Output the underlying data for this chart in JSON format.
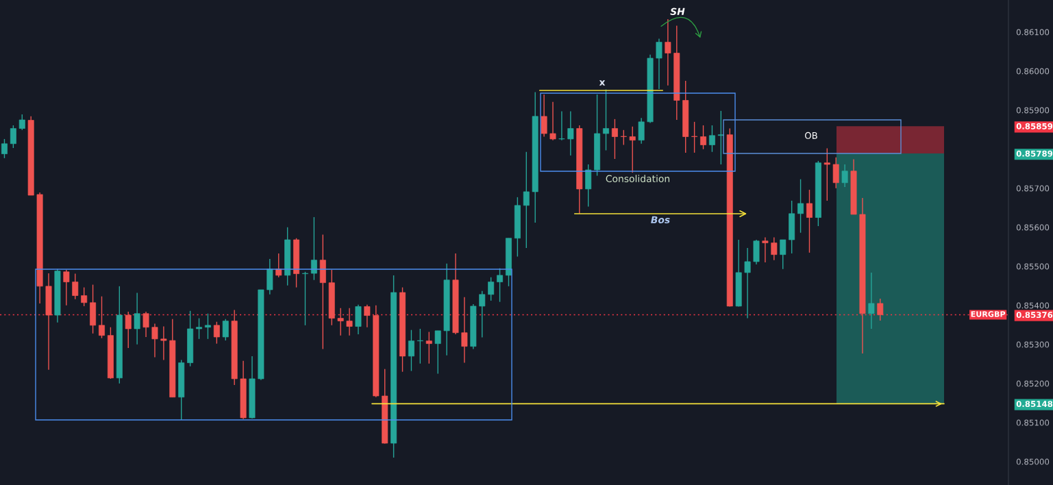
{
  "chart_data": {
    "type": "candlestick",
    "categories": [
      null,
      null,
      null,
      null,
      null,
      null,
      null,
      null,
      null,
      null,
      null,
      null,
      null,
      null,
      null,
      null,
      null,
      null,
      null,
      null,
      null,
      null,
      null,
      null,
      null,
      null,
      null,
      null,
      null,
      null,
      null,
      null,
      null,
      null,
      null,
      null,
      null,
      null,
      null,
      null,
      null,
      null,
      null,
      null,
      null,
      null,
      null,
      null,
      null,
      null,
      null,
      null,
      null,
      null,
      null,
      null,
      null,
      null,
      null,
      null,
      null,
      null,
      null,
      null,
      null,
      null,
      null,
      null,
      null,
      null,
      null,
      null,
      null,
      null,
      null,
      null,
      null,
      null,
      null,
      null,
      null,
      null,
      null,
      null,
      null,
      null,
      null,
      null,
      null,
      null,
      null,
      null,
      null,
      null,
      null,
      null,
      null,
      null,
      null,
      null,
      null,
      null,
      null,
      null,
      null,
      null,
      null,
      null,
      null,
      null,
      null,
      null,
      null,
      null
    ],
    "ohlc": [
      [
        0.85788,
        0.85826,
        0.85777,
        0.85814
      ],
      [
        0.85814,
        0.85861,
        0.85803,
        0.85853
      ],
      [
        0.85853,
        0.85889,
        0.85849,
        0.85875
      ],
      [
        0.85874,
        0.85884,
        0.85682,
        0.85682
      ],
      [
        0.85684,
        0.85689,
        0.85405,
        0.85449
      ],
      [
        0.85449,
        0.85482,
        0.85235,
        0.85375
      ],
      [
        0.85375,
        0.85493,
        0.85356,
        0.85488
      ],
      [
        0.85486,
        0.85491,
        0.854,
        0.8546
      ],
      [
        0.8546,
        0.85481,
        0.85416,
        0.85425
      ],
      [
        0.85425,
        0.85446,
        0.85398,
        0.85407
      ],
      [
        0.85407,
        0.85453,
        0.85328,
        0.85349
      ],
      [
        0.85349,
        0.85423,
        0.85316,
        0.85323
      ],
      [
        0.85323,
        0.85344,
        0.85212,
        0.85214
      ],
      [
        0.85214,
        0.85449,
        0.852,
        0.85375
      ],
      [
        0.85375,
        0.85384,
        0.85291,
        0.8534
      ],
      [
        0.8534,
        0.85432,
        0.853,
        0.85379
      ],
      [
        0.85379,
        0.85384,
        0.85319,
        0.85344
      ],
      [
        0.85344,
        0.85353,
        0.85267,
        0.85314
      ],
      [
        0.85314,
        0.85346,
        0.8526,
        0.8531
      ],
      [
        0.8531,
        0.85365,
        0.85165,
        0.85165
      ],
      [
        0.85165,
        0.8526,
        0.85107,
        0.85253
      ],
      [
        0.85253,
        0.85386,
        0.85244,
        0.8534
      ],
      [
        0.8534,
        0.85367,
        0.85314,
        0.85344
      ],
      [
        0.85344,
        0.85379,
        0.85314,
        0.85349
      ],
      [
        0.85349,
        0.85358,
        0.85302,
        0.85319
      ],
      [
        0.85319,
        0.85365,
        0.8531,
        0.8536
      ],
      [
        0.8536,
        0.85388,
        0.85196,
        0.85212
      ],
      [
        0.85212,
        0.85258,
        0.85109,
        0.85112
      ],
      [
        0.85112,
        0.8527,
        0.8511,
        0.85212
      ],
      [
        0.85212,
        0.8544,
        0.85209,
        0.8544
      ],
      [
        0.8544,
        0.85519,
        0.85428,
        0.85493
      ],
      [
        0.85493,
        0.85533,
        0.85472,
        0.85477
      ],
      [
        0.85477,
        0.856,
        0.85451,
        0.85568
      ],
      [
        0.85568,
        0.85572,
        0.85446,
        0.85481
      ],
      [
        0.85481,
        0.85486,
        0.85349,
        0.85482
      ],
      [
        0.85482,
        0.85626,
        0.85465,
        0.85516
      ],
      [
        0.85516,
        0.85581,
        0.85288,
        0.85458
      ],
      [
        0.85458,
        0.85491,
        0.85349,
        0.85367
      ],
      [
        0.85367,
        0.85393,
        0.85323,
        0.8536
      ],
      [
        0.8536,
        0.85393,
        0.85323,
        0.85346
      ],
      [
        0.85346,
        0.85402,
        0.85326,
        0.85397
      ],
      [
        0.85397,
        0.85402,
        0.85344,
        0.85374
      ],
      [
        0.85374,
        0.854,
        0.85165,
        0.85168
      ],
      [
        0.85168,
        0.85237,
        0.85046,
        0.85047
      ],
      [
        0.85047,
        0.85477,
        0.8501,
        0.85433
      ],
      [
        0.85433,
        0.85446,
        0.8523,
        0.8527
      ],
      [
        0.8527,
        0.85337,
        0.85232,
        0.85309
      ],
      [
        0.85309,
        0.8534,
        0.85251,
        0.85309
      ],
      [
        0.85309,
        0.85332,
        0.85251,
        0.85302
      ],
      [
        0.85302,
        0.85335,
        0.85225,
        0.85335
      ],
      [
        0.85335,
        0.85507,
        0.85272,
        0.85465
      ],
      [
        0.85465,
        0.85533,
        0.85326,
        0.8533
      ],
      [
        0.8533,
        0.85421,
        0.85253,
        0.85295
      ],
      [
        0.85295,
        0.85403,
        0.85288,
        0.85398
      ],
      [
        0.85398,
        0.85437,
        0.85318,
        0.85428
      ],
      [
        0.85428,
        0.85472,
        0.85412,
        0.8546
      ],
      [
        0.8546,
        0.85495,
        0.85409,
        0.85477
      ],
      [
        0.85477,
        0.85572,
        0.85449,
        0.85572
      ],
      [
        0.85572,
        0.85677,
        0.85525,
        0.85656
      ],
      [
        0.85656,
        0.85793,
        0.85547,
        0.85691
      ],
      [
        0.85691,
        0.85946,
        0.85612,
        0.85884
      ],
      [
        0.85884,
        0.8594,
        0.85832,
        0.8584
      ],
      [
        0.8584,
        0.85921,
        0.85823,
        0.85826
      ],
      [
        0.85826,
        0.85897,
        0.85823,
        0.85826
      ],
      [
        0.85826,
        0.85897,
        0.85784,
        0.85853
      ],
      [
        0.85853,
        0.85861,
        0.85635,
        0.85698
      ],
      [
        0.85698,
        0.85761,
        0.85653,
        0.85747
      ],
      [
        0.85747,
        0.8594,
        0.85732,
        0.8584
      ],
      [
        0.8584,
        0.85953,
        0.85797,
        0.85853
      ],
      [
        0.85853,
        0.85877,
        0.85775,
        0.85832
      ],
      [
        0.85832,
        0.85849,
        0.85811,
        0.85832
      ],
      [
        0.85832,
        0.85858,
        0.8574,
        0.85823
      ],
      [
        0.85823,
        0.8588,
        0.85814,
        0.8587
      ],
      [
        0.8587,
        0.86042,
        0.85867,
        0.86033
      ],
      [
        0.86033,
        0.86083,
        0.85954,
        0.86074
      ],
      [
        0.86074,
        0.86133,
        0.85963,
        0.86046
      ],
      [
        0.86046,
        0.86116,
        0.85875,
        0.85925
      ],
      [
        0.85925,
        0.85975,
        0.85791,
        0.85832
      ],
      [
        0.85832,
        0.8587,
        0.85791,
        0.85832
      ],
      [
        0.85832,
        0.85861,
        0.858,
        0.85811
      ],
      [
        0.85811,
        0.85861,
        0.85793,
        0.85835
      ],
      [
        0.85835,
        0.85898,
        0.85761,
        0.85837
      ],
      [
        0.85837,
        0.85853,
        0.85397,
        0.85398
      ],
      [
        0.85398,
        0.85568,
        0.85397,
        0.85484
      ],
      [
        0.85484,
        0.85547,
        0.85367,
        0.85512
      ],
      [
        0.85512,
        0.85568,
        0.85505,
        0.85565
      ],
      [
        0.85565,
        0.85574,
        0.8551,
        0.8556
      ],
      [
        0.8556,
        0.85574,
        0.85516,
        0.8553
      ],
      [
        0.8553,
        0.85568,
        0.85493,
        0.85568
      ],
      [
        0.85568,
        0.85668,
        0.85533,
        0.85635
      ],
      [
        0.85635,
        0.85723,
        0.85586,
        0.85661
      ],
      [
        0.85661,
        0.85696,
        0.85535,
        0.85625
      ],
      [
        0.85625,
        0.8577,
        0.85603,
        0.85765
      ],
      [
        0.85765,
        0.85802,
        0.85668,
        0.85761
      ],
      [
        0.85761,
        0.85779,
        0.857,
        0.85714
      ],
      [
        0.85714,
        0.85761,
        0.85703,
        0.85744
      ],
      [
        0.85744,
        0.85774,
        0.85633,
        0.85633
      ],
      [
        0.85633,
        0.85675,
        0.85277,
        0.85379
      ],
      [
        0.85379,
        0.85484,
        0.8534,
        0.85405
      ],
      [
        0.85405,
        0.85417,
        0.85361,
        0.85376
      ],
      null,
      null,
      null,
      null,
      null,
      null,
      null,
      null,
      null,
      null,
      null,
      null,
      null,
      null
    ],
    "colors": [
      "#26a69a",
      "#26a69a",
      "#26a69a",
      "#ef5350",
      "#ef5350",
      "#ef5350",
      "#26a69a",
      "#ef5350",
      "#ef5350",
      "#ef5350",
      "#ef5350",
      "#ef5350",
      "#ef5350",
      "#26a69a",
      "#ef5350",
      "#26a69a",
      "#ef5350",
      "#ef5350",
      "#ef5350",
      "#ef5350",
      "#26a69a",
      "#26a69a",
      "#26a69a",
      "#26a69a",
      "#ef5350",
      "#26a69a",
      "#ef5350",
      "#ef5350",
      "#26a69a",
      "#26a69a",
      "#26a69a",
      "#ef5350",
      "#26a69a",
      "#ef5350",
      "#26a69a",
      "#26a69a",
      "#ef5350",
      "#ef5350",
      "#ef5350",
      "#ef5350",
      "#26a69a",
      "#ef5350",
      "#ef5350",
      "#ef5350",
      "#26a69a",
      "#ef5350",
      "#26a69a",
      "#26a69a",
      "#ef5350",
      "#26a69a",
      "#26a69a",
      "#ef5350",
      "#ef5350",
      "#26a69a",
      "#26a69a",
      "#26a69a",
      "#26a69a",
      "#26a69a",
      "#26a69a",
      "#26a69a",
      "#26a69a",
      "#ef5350",
      "#ef5350",
      "#26a69a",
      "#26a69a",
      "#ef5350",
      "#26a69a",
      "#26a69a",
      "#26a69a",
      "#ef5350",
      "#ef5350",
      "#ef5350",
      "#26a69a",
      "#26a69a",
      "#26a69a",
      "#ef5350",
      "#ef5350",
      "#ef5350",
      "#ef5350",
      "#ef5350",
      "#26a69a",
      "#26a69a",
      "#ef5350",
      "#26a69a",
      "#26a69a",
      "#26a69a",
      "#ef5350",
      "#ef5350",
      "#26a69a",
      "#26a69a",
      "#26a69a",
      "#ef5350",
      "#26a69a",
      "#ef5350",
      "#ef5350",
      "#26a69a",
      "#ef5350",
      "#ef5350",
      "#26a69a",
      "#ef5350",
      null,
      null,
      null,
      null,
      null,
      null,
      null,
      null,
      null,
      null,
      null,
      null,
      null,
      null
    ],
    "ylim": [
      0.8494,
      0.86182
    ],
    "yticks": [
      {
        "value": 0.85,
        "label": "0.85000"
      },
      {
        "value": 0.851,
        "label": "0.85100"
      },
      {
        "value": 0.852,
        "label": "0.85200"
      },
      {
        "value": 0.85148,
        "label": "0.85148"
      },
      {
        "value": 0.853,
        "label": "0.85300"
      },
      {
        "value": 0.85376,
        "label": "0.85376"
      },
      {
        "value": 0.854,
        "label": "0.85400"
      },
      {
        "value": 0.855,
        "label": "0.85500"
      },
      {
        "value": 0.856,
        "label": "0.85600"
      },
      {
        "value": 0.857,
        "label": "0.85700"
      },
      {
        "value": 0.85789,
        "label": "0.85789"
      },
      {
        "value": 0.85859,
        "label": "0.85859"
      },
      {
        "value": 0.859,
        "label": "0.85900"
      },
      {
        "value": 0.86,
        "label": "0.86000"
      },
      {
        "value": 0.861,
        "label": "0.86100"
      }
    ],
    "tick_labels": "y",
    "ref_lines": [
      {
        "axis": "y",
        "value": 0.85376,
        "label": "EURGBP",
        "color": "#f23645",
        "line_style": "dotted"
      },
      {
        "axis": "y",
        "value": 0.85148,
        "color": "#f5e13a",
        "line_style": "solid"
      }
    ],
    "bands": [
      {
        "axis": "y",
        "from": 0.85148,
        "to": 0.85789,
        "color": "#22ab94"
      },
      {
        "axis": "y",
        "from": 0.85789,
        "to": 0.85859,
        "color": "#f23645"
      }
    ],
    "annotations": [
      "x",
      "SH",
      "Consolidation",
      "Bos",
      "OB"
    ]
  }
}
